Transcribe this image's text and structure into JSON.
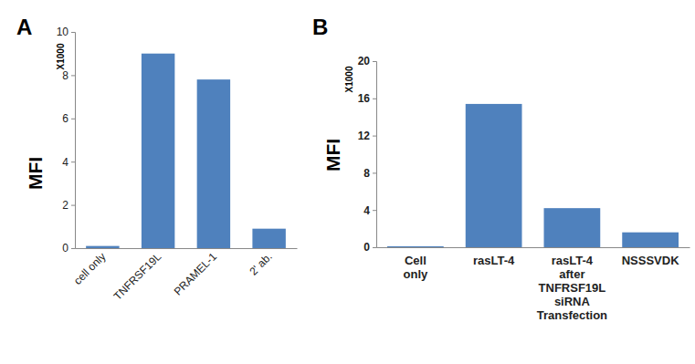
{
  "chart_data": [
    {
      "type": "bar",
      "title": "A",
      "ylabel": "MFI",
      "annotations": [
        "X1000"
      ],
      "categories": [
        "cell only",
        "TNFRSF19L",
        "PRAMEL-1",
        "2' ab."
      ],
      "values": [
        0.1,
        9.0,
        7.8,
        0.9
      ],
      "color": "#4f81bd",
      "ylim": [
        0,
        10
      ],
      "yticks": [
        0,
        2,
        4,
        6,
        8,
        10
      ],
      "grid": false
    },
    {
      "type": "bar",
      "title": "B",
      "ylabel": "MFI",
      "annotations": [
        "X1000"
      ],
      "categories": [
        "Cell only",
        "rasLT-4",
        "rasLT-4 after TNFRSF19L siRNA Transfection",
        "NSSSVDK"
      ],
      "values": [
        0.1,
        15.4,
        4.2,
        1.6
      ],
      "color": "#4f81bd",
      "ylim": [
        0,
        20
      ],
      "yticks": [
        0,
        4,
        8,
        12,
        16,
        20
      ],
      "grid": false
    }
  ]
}
